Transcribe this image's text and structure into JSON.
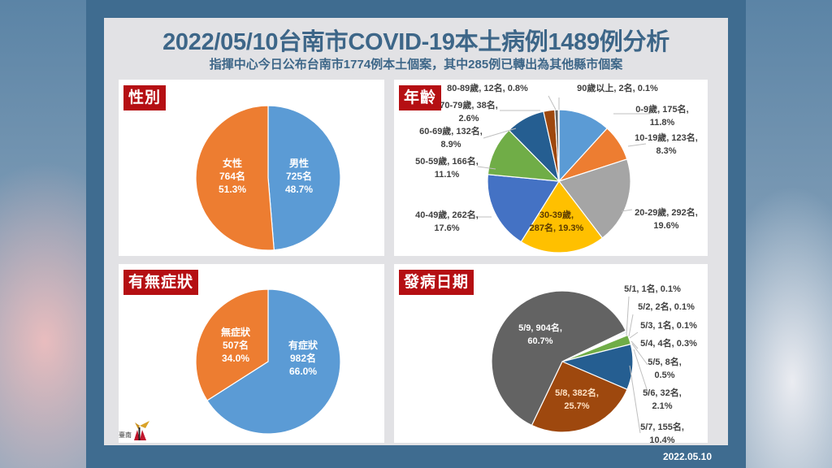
{
  "header": {
    "title": "2022/05/10台南市COVID-19本土病例1489例分析",
    "subtitle": "指揮中心今日公布台南市1774例本土個案，其中285例已轉出為其他縣市個案"
  },
  "footer": {
    "date": "2022.05.10",
    "logo_text": "臺南"
  },
  "colors": {
    "frame": "#3f6c90",
    "title": "#3d6688",
    "tag": "#b50f13"
  },
  "chart_data": [
    {
      "type": "pie",
      "title": "性別",
      "slices": [
        {
          "name": "男性",
          "count": "725名",
          "percent": "48.7%",
          "value": 725,
          "color": "#5b9bd5"
        },
        {
          "name": "女性",
          "count": "764名",
          "percent": "51.3%",
          "value": 764,
          "color": "#ed7d31"
        }
      ]
    },
    {
      "type": "pie",
      "title": "年齡",
      "slices": [
        {
          "name": "0-9歲",
          "count": "175名",
          "percent": "11.8%",
          "value": 175,
          "color": "#5b9bd5",
          "label_line1": "0-9歲, 175名,",
          "label_line2": "11.8%"
        },
        {
          "name": "10-19歲",
          "count": "123名",
          "percent": "8.3%",
          "value": 123,
          "color": "#ed7d31",
          "label_line1": "10-19歲, 123名,",
          "label_line2": "8.3%"
        },
        {
          "name": "20-29歲",
          "count": "292名",
          "percent": "19.6%",
          "value": 292,
          "color": "#a5a5a5",
          "label_line1": "20-29歲, 292名,",
          "label_line2": "19.6%"
        },
        {
          "name": "30-39歲",
          "count": "287名",
          "percent": "19.3%",
          "value": 287,
          "color": "#ffc000",
          "label_line1": "30-39歲,",
          "label_line2": "287名, 19.3%"
        },
        {
          "name": "40-49歲",
          "count": "262名",
          "percent": "17.6%",
          "value": 262,
          "color": "#4472c4",
          "label_line1": "40-49歲, 262名,",
          "label_line2": "17.6%"
        },
        {
          "name": "50-59歲",
          "count": "166名",
          "percent": "11.1%",
          "value": 166,
          "color": "#70ad47",
          "label_line1": "50-59歲, 166名,",
          "label_line2": "11.1%"
        },
        {
          "name": "60-69歲",
          "count": "132名",
          "percent": "8.9%",
          "value": 132,
          "color": "#255e91",
          "label_line1": "60-69歲, 132名,",
          "label_line2": "8.9%"
        },
        {
          "name": "70-79歲",
          "count": "38名",
          "percent": "2.6%",
          "value": 38,
          "color": "#9e480e",
          "label_line1": "70-79歲, 38名,",
          "label_line2": "2.6%"
        },
        {
          "name": "80-89歲",
          "count": "12名",
          "percent": "0.8%",
          "value": 12,
          "color": "#636363",
          "label_line1": "80-89歲, 12名, 0.8%",
          "label_line2": ""
        },
        {
          "name": "90歲以上",
          "count": "2名",
          "percent": "0.1%",
          "value": 2,
          "color": "#997300",
          "label_line1": "90歲以上, 2名, 0.1%",
          "label_line2": ""
        }
      ]
    },
    {
      "type": "pie",
      "title": "有無症狀",
      "slices": [
        {
          "name": "有症狀",
          "count": "982名",
          "percent": "66.0%",
          "value": 982,
          "color": "#5b9bd5"
        },
        {
          "name": "無症狀",
          "count": "507名",
          "percent": "34.0%",
          "value": 507,
          "color": "#ed7d31"
        }
      ]
    },
    {
      "type": "pie",
      "title": "發病日期",
      "slices": [
        {
          "name": "5/1",
          "count": "1名",
          "percent": "0.1%",
          "value": 1,
          "color": "#5b9bd5",
          "label_line1": "5/1, 1名, 0.1%",
          "label_line2": ""
        },
        {
          "name": "5/2",
          "count": "2名",
          "percent": "0.1%",
          "value": 2,
          "color": "#ed7d31",
          "label_line1": "5/2, 2名, 0.1%",
          "label_line2": ""
        },
        {
          "name": "5/3",
          "count": "1名",
          "percent": "0.1%",
          "value": 1,
          "color": "#a5a5a5",
          "label_line1": "5/3, 1名, 0.1%",
          "label_line2": ""
        },
        {
          "name": "5/4",
          "count": "4名",
          "percent": "0.3%",
          "value": 4,
          "color": "#4472c4",
          "label_line1": "5/4, 4名, 0.3%",
          "label_line2": ""
        },
        {
          "name": "5/5",
          "count": "8名",
          "percent": "0.5%",
          "value": 8,
          "color": "#ffffff",
          "label_line1": "5/5, 8名,",
          "label_line2": "0.5%"
        },
        {
          "name": "5/6",
          "count": "32名",
          "percent": "2.1%",
          "value": 32,
          "color": "#70ad47",
          "label_line1": "5/6, 32名,",
          "label_line2": "2.1%"
        },
        {
          "name": "5/7",
          "count": "155名",
          "percent": "10.4%",
          "value": 155,
          "color": "#255e91",
          "label_line1": "5/7, 155名,",
          "label_line2": "10.4%"
        },
        {
          "name": "5/8",
          "count": "382名",
          "percent": "25.7%",
          "value": 382,
          "color": "#9e480e",
          "label_line1": "5/8, 382名,",
          "label_line2": "25.7%"
        },
        {
          "name": "5/9",
          "count": "904名",
          "percent": "60.7%",
          "value": 904,
          "color": "#636363",
          "label_line1": "5/9, 904名,",
          "label_line2": "60.7%"
        }
      ]
    }
  ]
}
